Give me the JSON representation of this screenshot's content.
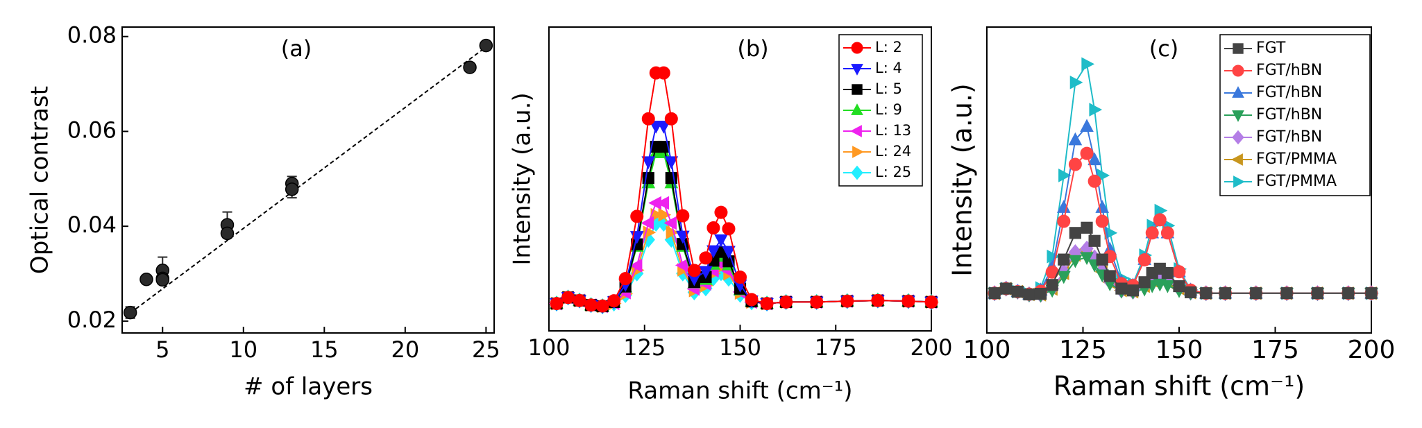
{
  "chart_data": [
    {
      "type": "scatter",
      "panel_label": "(a)",
      "xlabel": "# of layers",
      "ylabel": "Optical contrast",
      "xlim": [
        2.5,
        25.5
      ],
      "ylim": [
        0.0175,
        0.082
      ],
      "xticks": [
        5,
        10,
        15,
        20,
        25
      ],
      "yticks": [
        0.02,
        0.04,
        0.06,
        0.08
      ],
      "series": [
        {
          "color": "#2a2a2a",
          "x": [
            3,
            4,
            5,
            5,
            5,
            9,
            9,
            13,
            13,
            24,
            25
          ],
          "values": [
            0.0218,
            0.0288,
            0.0307,
            0.029,
            0.0287,
            0.0403,
            0.0385,
            0.049,
            0.0478,
            0.0735,
            0.0781
          ],
          "errors": [
            0.0012,
            0.0004,
            0.0028,
            0.0008,
            0.0004,
            0.0027,
            0.0007,
            0.0015,
            0.0018,
            0.0006,
            0.0008
          ]
        }
      ],
      "fit": {
        "x": [
          3,
          25
        ],
        "values": [
          0.0217,
          0.0778
        ],
        "color": "#000000",
        "dashed": true
      }
    },
    {
      "type": "line",
      "panel_label": "(b)",
      "xlabel": "Raman shift (cm⁻¹)",
      "ylabel": "Intensity (a.u.)",
      "xlim": [
        100,
        200
      ],
      "ylim": [
        0,
        100
      ],
      "xticks": [
        100,
        125,
        150,
        175,
        200
      ],
      "legend": "upper right",
      "legend_text_colored": false,
      "x": [
        102,
        105,
        108,
        111,
        114,
        117,
        120,
        123,
        126,
        128,
        130,
        132,
        135,
        138,
        141,
        143,
        145,
        147,
        150,
        153,
        157,
        162,
        170,
        178,
        186,
        194,
        200
      ],
      "series": [
        {
          "name": "L: 2",
          "color": "#ff0000",
          "marker": "circle",
          "values": [
            9,
            11,
            10,
            8.5,
            8.2,
            9.9,
            17.2,
            37.7,
            69.8,
            84.9,
            84.9,
            69.8,
            37.9,
            19.9,
            24,
            33.9,
            39,
            33.6,
            17.7,
            10.3,
            9,
            9.5,
            9.5,
            9.8,
            10,
            9.8,
            9.5
          ]
        },
        {
          "name": "L: 4",
          "color": "#1a1aff",
          "marker": "triangle-down",
          "values": [
            9,
            11,
            10,
            8.5,
            8.1,
            9.6,
            15.3,
            31.1,
            55.7,
            67.4,
            67.4,
            55.7,
            31.2,
            17.2,
            19.6,
            26.4,
            30,
            26.2,
            15.1,
            9.9,
            9,
            9.5,
            9.5,
            9.8,
            10,
            9.8,
            9.5
          ]
        },
        {
          "name": "L: 5",
          "color": "#000000",
          "marker": "square",
          "values": [
            9,
            11,
            10,
            8.5,
            8.1,
            9.5,
            14.6,
            28.5,
            50.3,
            60.6,
            60.6,
            50.3,
            28.6,
            16.1,
            17.7,
            23.1,
            26,
            22.9,
            13.9,
            9.7,
            9,
            9.5,
            9.5,
            9.8,
            10,
            9.8,
            9.5
          ]
        },
        {
          "name": "L: 9",
          "color": "#22dd22",
          "marker": "triangle-up",
          "values": [
            9,
            11,
            10,
            8.5,
            8.1,
            9.4,
            14.4,
            27.8,
            48.7,
            58.6,
            58.6,
            48.7,
            27.8,
            15.8,
            16.9,
            21.9,
            24.5,
            21.7,
            13.5,
            9.7,
            9,
            9.5,
            9.5,
            9.8,
            10,
            9.8,
            9.5
          ]
        },
        {
          "name": "L: 13",
          "color": "#ee22ee",
          "marker": "triangle-left",
          "values": [
            9,
            11,
            10,
            8.5,
            8.1,
            9.1,
            12.6,
            21.5,
            35.5,
            42.1,
            42.1,
            35.5,
            21.6,
            13.8,
            15.5,
            19.8,
            22,
            19.7,
            12.8,
            9.5,
            9,
            9.5,
            9.5,
            9.8,
            10,
            9.8,
            9.5
          ]
        },
        {
          "name": "L: 24",
          "color": "#ff9922",
          "marker": "triangle-right",
          "values": [
            9,
            11,
            10,
            8.5,
            8.1,
            9,
            12.2,
            20,
            32.4,
            38.2,
            38.2,
            32.4,
            20.1,
            13.3,
            14.9,
            18.9,
            21,
            18.8,
            12.5,
            9.5,
            9,
            9.5,
            9.5,
            9.8,
            10,
            9.8,
            9.5
          ]
        },
        {
          "name": "L: 25",
          "color": "#22eeff",
          "marker": "diamond",
          "values": [
            9,
            11,
            10,
            8.5,
            8.1,
            9,
            11.8,
            18.9,
            30,
            35.3,
            35.3,
            30,
            18.9,
            12.7,
            14,
            17.3,
            19,
            17.2,
            11.9,
            9.4,
            9,
            9.5,
            9.5,
            9.8,
            10,
            9.8,
            9.5
          ]
        }
      ]
    },
    {
      "type": "line",
      "panel_label": "(c)",
      "xlabel": "Raman shift (cm⁻¹)",
      "ylabel": "Intensity (a.u.)",
      "xlim": [
        100,
        200
      ],
      "ylim": [
        0,
        100
      ],
      "xticks": [
        100,
        125,
        150,
        175,
        200
      ],
      "legend": "upper right",
      "legend_text_colored": true,
      "x": [
        102,
        105,
        108,
        111,
        114,
        117,
        120,
        123,
        126,
        128,
        130,
        132,
        135,
        138,
        141,
        143,
        145,
        147,
        150,
        153,
        157,
        162,
        170,
        178,
        186,
        194,
        200
      ],
      "series": [
        {
          "name": "FGT",
          "color": "#444444",
          "marker": "square",
          "values": [
            13,
            14.5,
            13.5,
            12.6,
            12.8,
            15.7,
            24,
            32.7,
            34.4,
            30.1,
            24,
            18.6,
            14.5,
            13.9,
            16.6,
            19.6,
            21,
            19.6,
            15.3,
            13.3,
            13,
            13,
            13,
            13,
            13,
            13,
            13
          ]
        },
        {
          "name": "FGT/hBN",
          "color": "#ff4444",
          "marker": "circle",
          "values": [
            13,
            14.5,
            13.5,
            12.7,
            13.6,
            19.9,
            36.5,
            55.1,
            58.7,
            49.6,
            36.5,
            25,
            16.1,
            15.5,
            23.9,
            32.7,
            37,
            32.7,
            20,
            14,
            13,
            13,
            13,
            13,
            13,
            13,
            13
          ]
        },
        {
          "name": "FGT/hBN",
          "color": "#3a78dc",
          "marker": "triangle-up",
          "values": [
            13,
            14.5,
            13.5,
            12.7,
            14,
            21.5,
            41,
            63.1,
            67.5,
            56.6,
            41,
            27.3,
            16.7,
            15.6,
            24,
            32.7,
            37,
            32.7,
            20,
            14,
            13,
            13,
            13,
            13,
            13,
            13,
            13
          ]
        },
        {
          "name": "FGT/hBN",
          "color": "#2aa05a",
          "marker": "triangle-down",
          "values": [
            13,
            14.5,
            13.5,
            12.5,
            12.4,
            14,
            18.5,
            23.7,
            24.7,
            22.3,
            19,
            16.1,
            13.7,
            13.4,
            14.4,
            15.5,
            16,
            15.5,
            13.9,
            13.1,
            13,
            13,
            13,
            13,
            13,
            13,
            13
          ]
        },
        {
          "name": "FGT/hBN",
          "color": "#b47ee6",
          "marker": "diamond",
          "values": [
            13,
            14.5,
            13.5,
            12.6,
            12.5,
            14.5,
            20,
            26.4,
            27.6,
            24.7,
            20.5,
            16.8,
            13.9,
            13.5,
            15.3,
            17.1,
            18,
            17.1,
            14.5,
            13.2,
            13,
            13,
            13,
            13,
            13,
            13,
            13
          ]
        },
        {
          "name": "FGT/PMMA",
          "color": "#c8961e",
          "marker": "triangle-left",
          "values": [
            13,
            14.5,
            13.5,
            12.6,
            12.5,
            14.4,
            19.5,
            25.5,
            26.6,
            23.9,
            20,
            16.6,
            13.9,
            13.5,
            15.3,
            17.1,
            18,
            17.1,
            14.5,
            13.2,
            13,
            13,
            13,
            13,
            13,
            13,
            13
          ]
        },
        {
          "name": "FGT/PMMA",
          "color": "#1fbcc8",
          "marker": "triangle-right",
          "values": [
            13,
            14.5,
            13.5,
            12.8,
            14.7,
            25,
            51.5,
            81.9,
            87.9,
            73,
            51.5,
            32.7,
            18,
            16.1,
            25.4,
            35.1,
            40,
            35.1,
            20.9,
            14.1,
            13,
            13,
            13,
            13,
            13,
            13,
            13
          ]
        }
      ]
    }
  ]
}
